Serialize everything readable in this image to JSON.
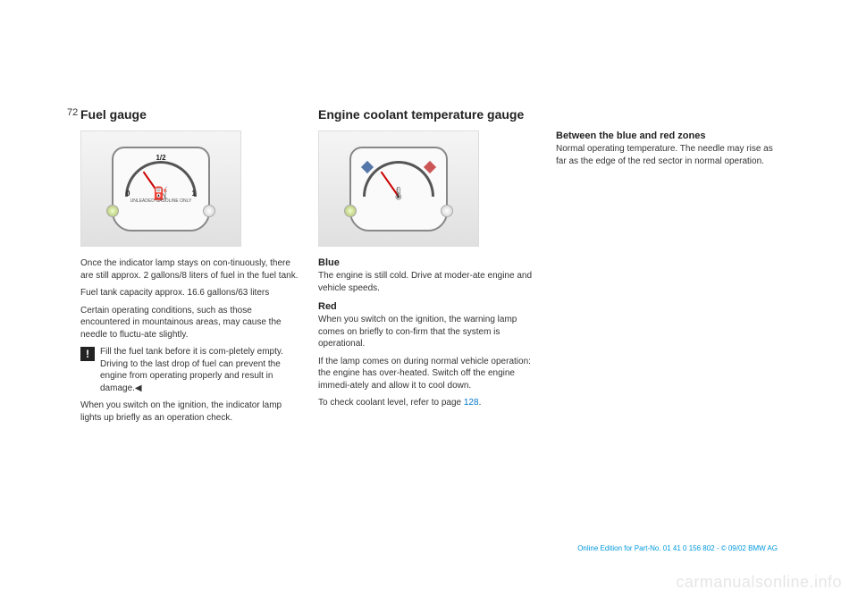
{
  "page_number": "72",
  "col1": {
    "heading": "Fuel gauge",
    "gauge": {
      "left_label": "0",
      "top_label": "1/2",
      "right_label": "1",
      "icon": "⛽",
      "sub_text": "UNLEADED GASOLINE ONLY"
    },
    "p1": "Once the indicator lamp stays on con-tinuously, there are still approx. 2 gallons/8 liters of fuel in the fuel tank.",
    "p2": "Fuel tank capacity approx. 16.6 gallons/63 liters",
    "p3": "Certain operating conditions, such as those encountered in mountainous areas, may cause the needle to fluctu-ate slightly.",
    "caution": "Fill the fuel tank before it is com-pletely empty. Driving to the last drop of fuel can prevent the engine from operating properly and result in damage.◀",
    "p4": "When you switch on the ignition, the indicator lamp lights up briefly as an operation check."
  },
  "col2": {
    "heading": "Engine coolant temperature gauge",
    "gauge": {
      "icon": "🌡"
    },
    "h_blue": "Blue",
    "p_blue": "The engine is still cold. Drive at moder-ate engine and vehicle speeds.",
    "h_red": "Red",
    "p_red1": "When you switch on the ignition, the warning lamp comes on briefly to con-firm that the system is operational.",
    "p_red2": "If the lamp comes on during normal vehicle operation: the engine has over-heated. Switch off the engine immedi-ately and allow it to cool down.",
    "p_red3_a": "To check coolant level, refer to page ",
    "p_red3_link": "128",
    "p_red3_b": "."
  },
  "col3": {
    "h1": "Between the blue and red zones",
    "p1": "Normal operating temperature. The needle may rise as far as the edge of the red sector in normal operation."
  },
  "footer": "Online Edition for Part-No. 01 41 0 156 802 - © 09/02 BMW AG",
  "watermark": "carmanualsonline.info"
}
